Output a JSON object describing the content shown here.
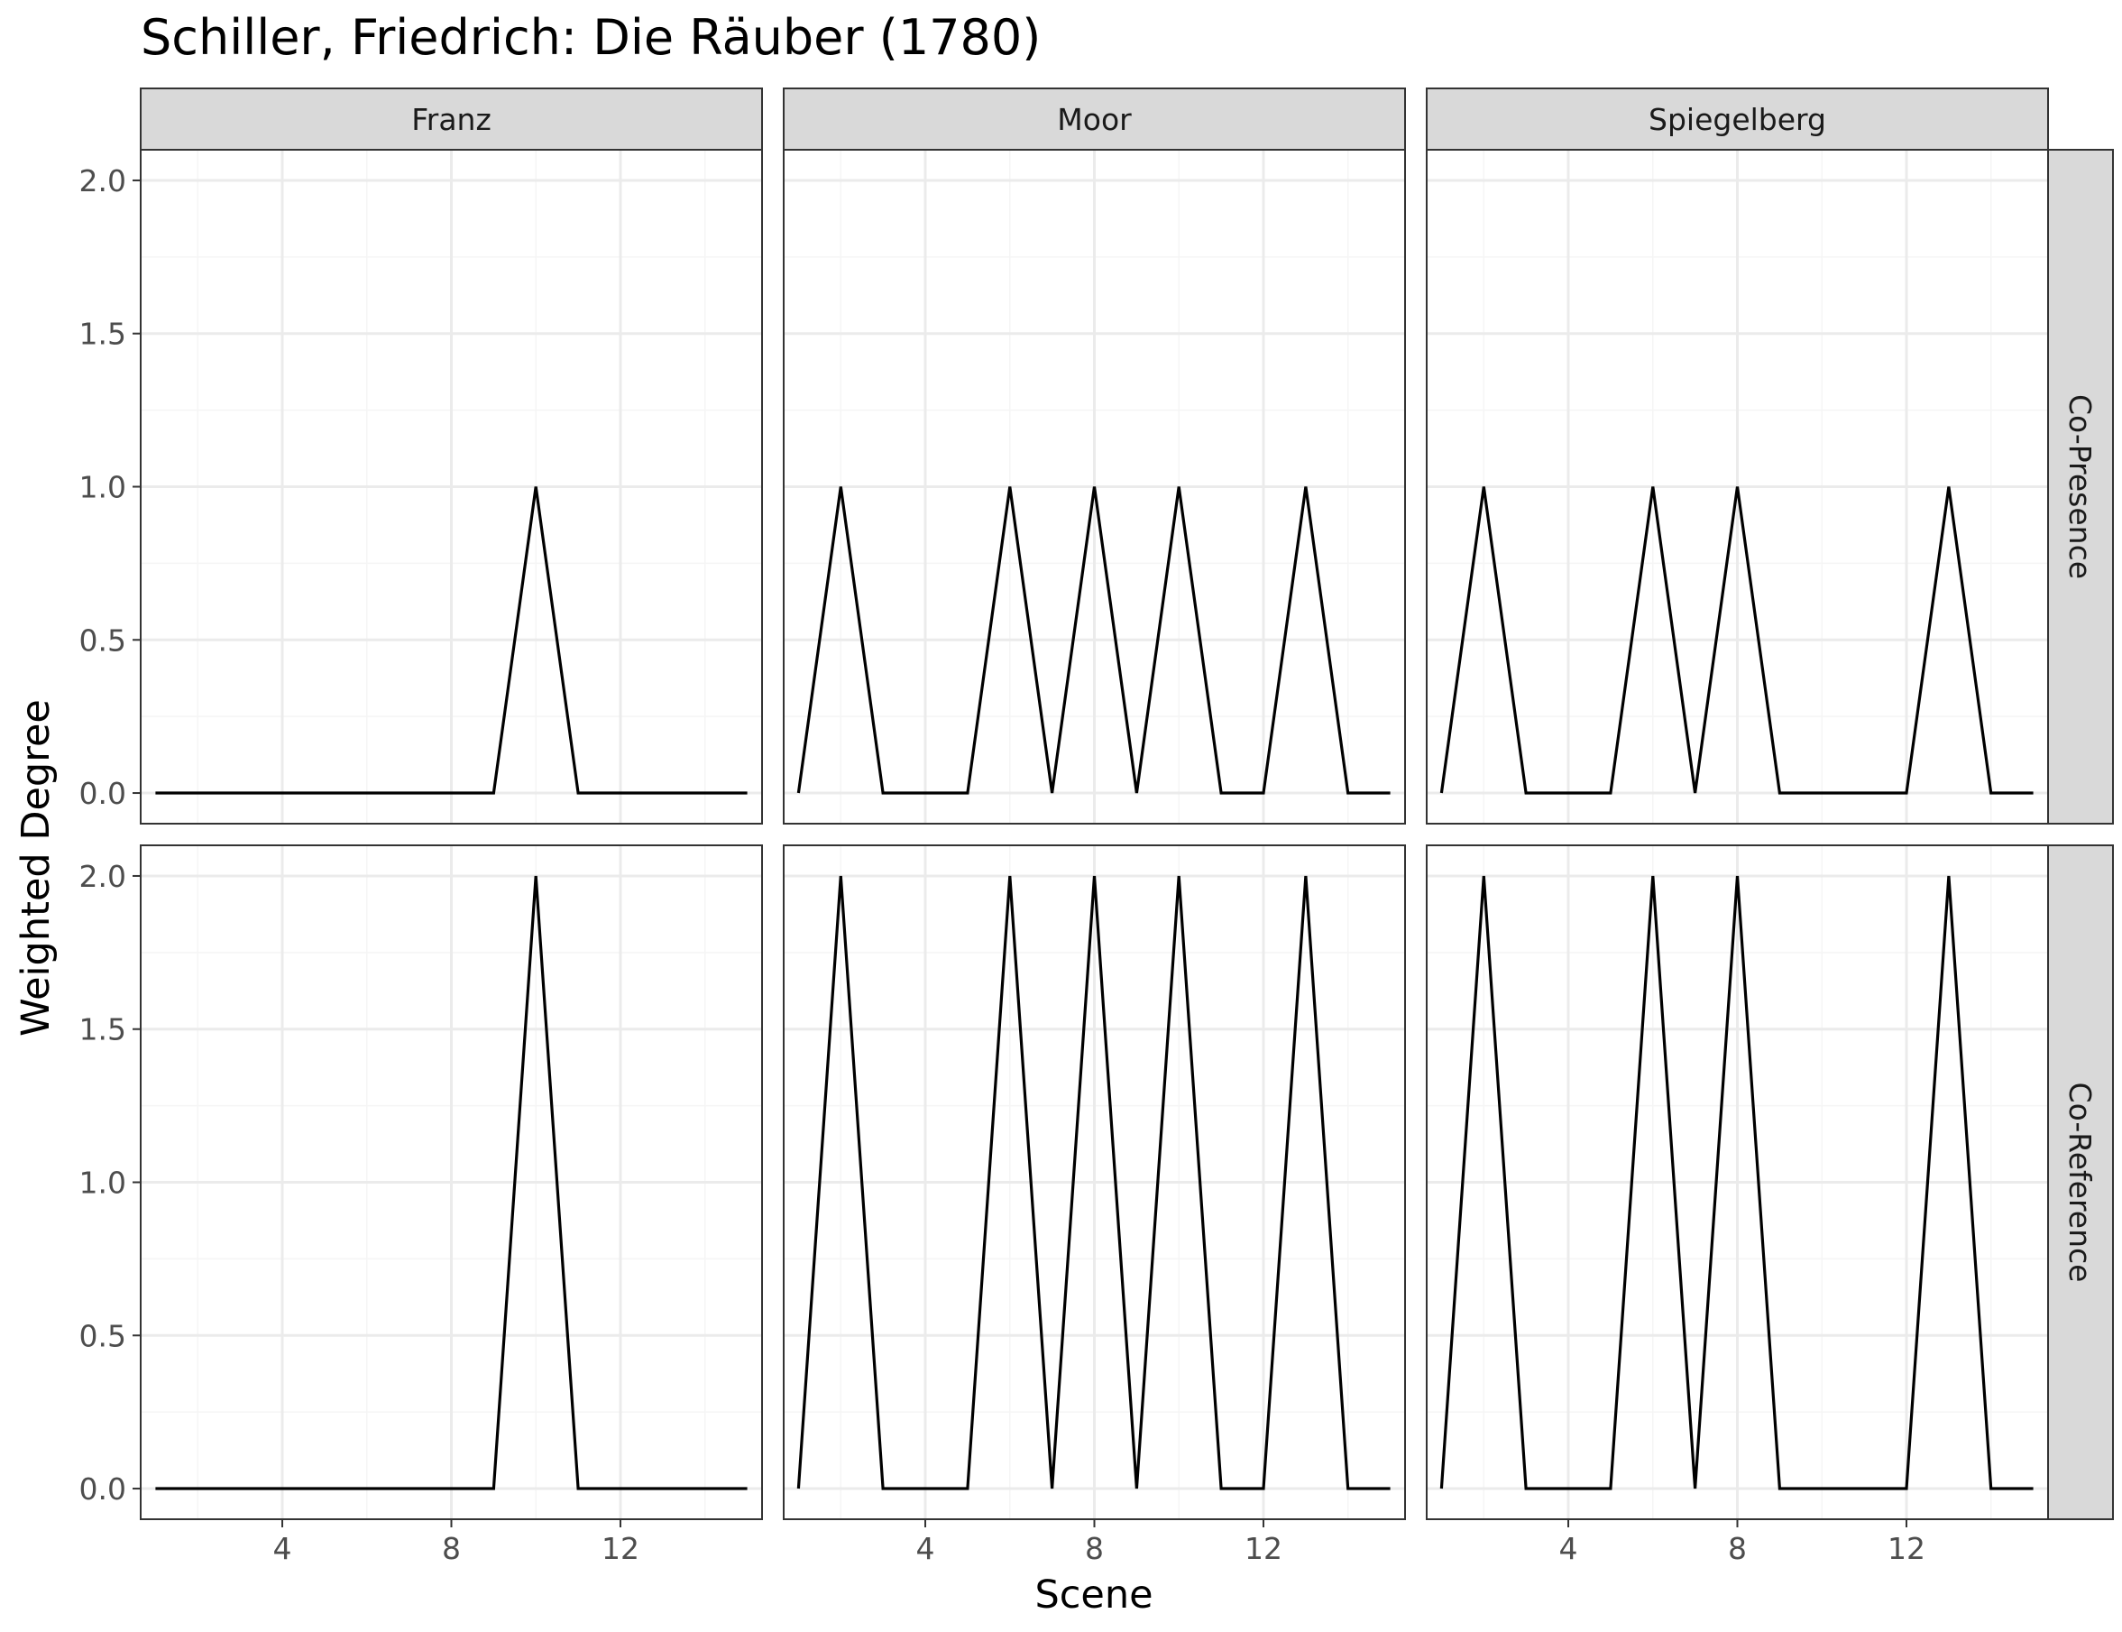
{
  "chart_data": {
    "type": "line",
    "title": "Schiller, Friedrich: Die Räuber (1780)",
    "xlabel": "Scene",
    "ylabel": "Weighted Degree",
    "grid": true,
    "facet_columns": [
      "Franz",
      "Moor",
      "Spiegelberg"
    ],
    "facet_rows": [
      "Co-Presence",
      "Co-Reference"
    ],
    "xlim": [
      0.65,
      15.35
    ],
    "ylim": [
      -0.1,
      2.1
    ],
    "x_ticks": [
      4,
      8,
      12
    ],
    "y_ticks": [
      0.0,
      0.5,
      1.0,
      1.5,
      2.0
    ],
    "y_tick_labels": [
      "0.0",
      "0.5",
      "1.0",
      "1.5",
      "2.0"
    ],
    "x": [
      1,
      2,
      3,
      4,
      5,
      6,
      7,
      8,
      9,
      10,
      11,
      12,
      13,
      14,
      15
    ],
    "panels": [
      {
        "row": "Co-Presence",
        "column": "Franz",
        "values": [
          0,
          0,
          0,
          0,
          0,
          0,
          0,
          0,
          0,
          1,
          0,
          0,
          0,
          0,
          0
        ]
      },
      {
        "row": "Co-Presence",
        "column": "Moor",
        "values": [
          0,
          1,
          0,
          0,
          0,
          1,
          0,
          1,
          0,
          1,
          0,
          0,
          1,
          0,
          0
        ]
      },
      {
        "row": "Co-Presence",
        "column": "Spiegelberg",
        "values": [
          0,
          1,
          0,
          0,
          0,
          1,
          0,
          1,
          0,
          0,
          0,
          0,
          1,
          0,
          0
        ]
      },
      {
        "row": "Co-Reference",
        "column": "Franz",
        "values": [
          0,
          0,
          0,
          0,
          0,
          0,
          0,
          0,
          0,
          2,
          0,
          0,
          0,
          0,
          0
        ]
      },
      {
        "row": "Co-Reference",
        "column": "Moor",
        "values": [
          0,
          2,
          0,
          0,
          0,
          2,
          0,
          2,
          0,
          2,
          0,
          0,
          2,
          0,
          0
        ]
      },
      {
        "row": "Co-Reference",
        "column": "Spiegelberg",
        "values": [
          0,
          2,
          0,
          0,
          0,
          2,
          0,
          2,
          0,
          0,
          0,
          0,
          2,
          0,
          0
        ]
      }
    ],
    "colors": {
      "line": "#000000",
      "strip_fill": "#d9d9d9",
      "panel_border": "#333333",
      "grid_major": "#ebebeb",
      "grid_minor": "#f5f5f5",
      "tick_text": "#4d4d4d"
    }
  }
}
